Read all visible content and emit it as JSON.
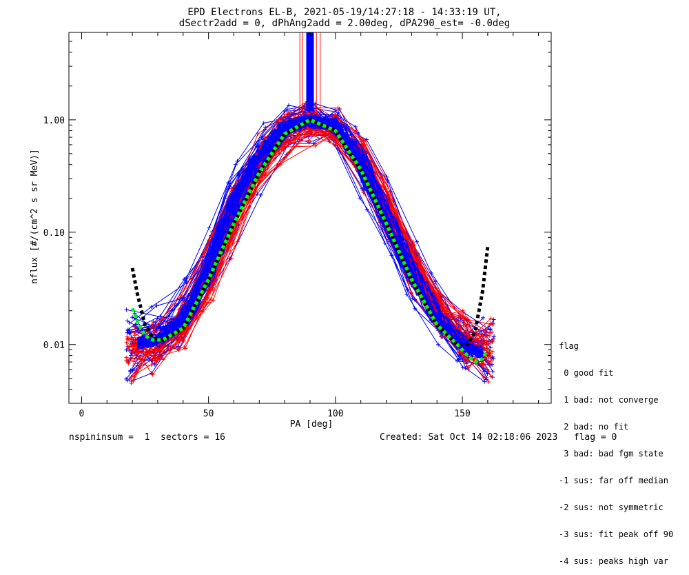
{
  "title_line1": "EPD Electrons EL-B, 2021-05-19/14:27:18 - 14:33:19 UT,",
  "title_line2": "dSectr2add = 0, dPhAng2add = 2.00deg, dPA290_est=  -0.0deg",
  "footer": {
    "left": "nspininsum =  1  sectors = 16",
    "created": "Created: Sat Oct 14 02:18:06 2023",
    "flag": "flag = 0"
  },
  "legend": {
    "title": "flag",
    "items": [
      " 0 good fit",
      " 1 bad: not converge",
      " 2 bad: no fit",
      " 3 bad: bad fgm state",
      "-1 sus: far off median",
      "-2 sus: not symmetric",
      "-3 sus: fit peak off 90",
      "-4 sus: peaks high var"
    ]
  },
  "chart_data": {
    "type": "line",
    "title": "EPD Electrons EL-B, 2021-05-19/14:27:18 - 14:33:19 UT, dSectr2add = 0, dPhAng2add = 2.00deg, dPA290_est=  -0.0deg",
    "xlabel": "PA [deg]",
    "ylabel": "nflux [#/(cm^2 s sr MeV)]",
    "xlim": [
      -5,
      185
    ],
    "ylim": [
      0.003,
      6.0
    ],
    "y_scale": "log",
    "x_ticks": [
      0,
      50,
      100,
      150
    ],
    "y_ticks": [
      0.01,
      0.1,
      1.0
    ],
    "y_tick_labels": [
      "0.01",
      "0.10",
      "1.00"
    ],
    "colors": {
      "blue": "#0000ff",
      "red": "#ff0000",
      "green": "#00ff00",
      "black": "#000000"
    },
    "series": [
      {
        "color": "blue",
        "style": "line+plus",
        "x": [
          20,
          30,
          40,
          50,
          60,
          70,
          80,
          90,
          100,
          110,
          120,
          130,
          140,
          150,
          160
        ],
        "y": [
          0.01,
          0.011,
          0.016,
          0.045,
          0.18,
          0.45,
          0.85,
          0.98,
          0.9,
          0.45,
          0.14,
          0.045,
          0.018,
          0.01,
          0.008
        ]
      },
      {
        "color": "red",
        "style": "line+plus",
        "x": [
          20,
          30,
          40,
          50,
          60,
          70,
          80,
          90,
          100,
          110,
          120,
          130,
          140,
          150,
          160
        ],
        "y": [
          0.009,
          0.01,
          0.014,
          0.04,
          0.15,
          0.4,
          0.8,
          0.95,
          0.88,
          0.5,
          0.17,
          0.055,
          0.02,
          0.011,
          0.009
        ]
      },
      {
        "color": "black",
        "style": "dashed",
        "x": [
          20,
          22,
          25,
          28,
          32,
          40,
          50,
          60,
          70,
          80,
          90,
          100,
          110,
          120,
          130,
          140,
          148,
          152,
          155,
          158,
          160
        ],
        "y": [
          0.048,
          0.028,
          0.015,
          0.0115,
          0.011,
          0.014,
          0.038,
          0.12,
          0.34,
          0.75,
          1.0,
          0.8,
          0.36,
          0.12,
          0.038,
          0.015,
          0.01,
          0.01,
          0.013,
          0.03,
          0.075
        ]
      },
      {
        "color": "green",
        "style": "dashed",
        "x": [
          20,
          22,
          25,
          28,
          32,
          40,
          50,
          60,
          70,
          80,
          90,
          100,
          110,
          120,
          130,
          140,
          148,
          152,
          155,
          158,
          160
        ],
        "y": [
          0.021,
          0.016,
          0.012,
          0.011,
          0.011,
          0.014,
          0.038,
          0.12,
          0.34,
          0.75,
          1.0,
          0.8,
          0.36,
          0.12,
          0.038,
          0.015,
          0.01,
          0.008,
          0.007,
          0.0075,
          0.009
        ]
      }
    ]
  }
}
